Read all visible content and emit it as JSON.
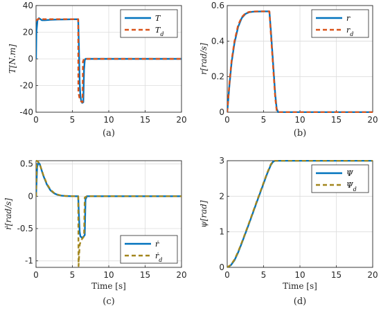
{
  "colors": {
    "blue": "#0072BD",
    "orange": "#D95319",
    "olive": "#A2861D",
    "grid": "#dcdcdc",
    "axis": "#262626"
  },
  "chart_data": [
    {
      "id": "a",
      "type": "line",
      "caption": "(a)",
      "xlabel": "",
      "ylabel": "T[N.m]",
      "xlim": [
        0,
        20
      ],
      "ylim": [
        -40,
        40
      ],
      "xticks": [
        0,
        5,
        10,
        15,
        20
      ],
      "yticks": [
        -40,
        -20,
        0,
        20,
        40
      ],
      "grid": true,
      "legend_position": "top-right",
      "series": [
        {
          "name": "T",
          "color": "#0072BD",
          "style": "solid",
          "x": [
            0,
            0.05,
            0.2,
            0.4,
            0.8,
            1.2,
            2,
            3,
            4,
            5,
            5.8,
            5.9,
            6.0,
            6.1,
            6.2,
            6.35,
            6.5,
            6.6,
            6.7,
            6.8,
            7,
            8,
            10,
            15,
            20
          ],
          "y": [
            0,
            20,
            29,
            30.5,
            29,
            29,
            29.3,
            29.5,
            29.6,
            29.7,
            29.7,
            8,
            -18,
            -28,
            -31,
            -33,
            -32.5,
            -8,
            -1,
            0,
            0,
            0,
            0,
            0,
            0
          ]
        },
        {
          "name": "T_d",
          "color": "#D95319",
          "style": "dashed",
          "x": [
            0,
            0.1,
            0.3,
            0.6,
            1,
            2,
            3,
            4,
            5,
            5.8,
            5.82,
            6,
            6.2,
            6.4,
            6.45,
            6.6,
            7,
            10,
            15,
            20
          ],
          "y": [
            29,
            29,
            30,
            30,
            29.8,
            29.8,
            29.8,
            29.8,
            29.8,
            29.8,
            -25,
            -30,
            -32,
            -32.5,
            -2,
            0,
            0,
            0,
            0,
            0
          ]
        }
      ]
    },
    {
      "id": "b",
      "type": "line",
      "caption": "(b)",
      "xlabel": "",
      "ylabel": "r[rad/s]",
      "xlim": [
        0,
        20
      ],
      "ylim": [
        0,
        0.6
      ],
      "xticks": [
        0,
        5,
        10,
        15,
        20
      ],
      "yticks": [
        0,
        0.2,
        0.4,
        0.6
      ],
      "grid": true,
      "legend_position": "top-right",
      "series": [
        {
          "name": "r",
          "color": "#0072BD",
          "style": "solid",
          "x": [
            0,
            0.3,
            0.6,
            1,
            1.5,
            2,
            2.5,
            3,
            3.5,
            4,
            5,
            5.8,
            6.0,
            6.2,
            6.4,
            6.6,
            6.8,
            7,
            10,
            15,
            20
          ],
          "y": [
            0,
            0.15,
            0.28,
            0.39,
            0.48,
            0.53,
            0.553,
            0.562,
            0.565,
            0.566,
            0.567,
            0.567,
            0.46,
            0.34,
            0.22,
            0.1,
            0.02,
            0,
            0,
            0,
            0
          ]
        },
        {
          "name": "r_d",
          "color": "#D95319",
          "style": "dashed",
          "x": [
            0,
            0.3,
            0.6,
            1,
            1.5,
            2,
            2.5,
            3,
            3.5,
            4,
            5,
            5.8,
            6.0,
            6.2,
            6.4,
            6.6,
            6.8,
            7,
            10,
            15,
            20
          ],
          "y": [
            0,
            0.16,
            0.29,
            0.4,
            0.49,
            0.535,
            0.556,
            0.564,
            0.566,
            0.567,
            0.567,
            0.567,
            0.44,
            0.32,
            0.2,
            0.08,
            0.01,
            0,
            0,
            0,
            0
          ]
        }
      ]
    },
    {
      "id": "c",
      "type": "line",
      "caption": "(c)",
      "xlabel": "Time [s]",
      "ylabel": "ṙ[rad/s]",
      "xlim": [
        0,
        20
      ],
      "ylim": [
        -1.1,
        0.55
      ],
      "xticks": [
        0,
        5,
        10,
        15,
        20
      ],
      "yticks": [
        -1,
        -0.5,
        0,
        0.5
      ],
      "grid": true,
      "legend_position": "bottom-right",
      "series": [
        {
          "name": "ṙ",
          "color": "#0072BD",
          "style": "solid",
          "x": [
            0,
            0.15,
            0.3,
            0.5,
            1,
            1.5,
            2,
            2.5,
            3,
            3.5,
            4,
            5,
            5.8,
            5.9,
            6.0,
            6.1,
            6.3,
            6.5,
            6.7,
            6.8,
            7,
            10,
            15,
            20
          ],
          "y": [
            0,
            0.45,
            0.52,
            0.5,
            0.32,
            0.18,
            0.09,
            0.045,
            0.02,
            0.01,
            0.004,
            0,
            0,
            -0.3,
            -0.55,
            -0.62,
            -0.64,
            -0.63,
            -0.6,
            -0.05,
            0,
            0,
            0,
            0
          ]
        },
        {
          "name": "ṙ_d",
          "color": "#A2861D",
          "style": "dashed",
          "x": [
            0,
            0.1,
            0.3,
            0.5,
            1,
            1.5,
            2,
            2.5,
            3,
            3.5,
            4,
            5,
            5.8,
            5.85,
            6.0,
            6.2,
            6.4,
            6.6,
            6.7,
            7,
            10,
            15,
            20
          ],
          "y": [
            0,
            0.55,
            0.53,
            0.5,
            0.33,
            0.19,
            0.1,
            0.05,
            0.025,
            0.01,
            0.005,
            0,
            0,
            -1.08,
            -0.75,
            -0.68,
            -0.65,
            -0.62,
            -0.02,
            0,
            0,
            0,
            0
          ]
        }
      ]
    },
    {
      "id": "d",
      "type": "line",
      "caption": "(d)",
      "xlabel": "Time [s]",
      "ylabel": "ψ[rad]",
      "xlim": [
        0,
        20
      ],
      "ylim": [
        0,
        3
      ],
      "xticks": [
        0,
        5,
        10,
        15,
        20
      ],
      "yticks": [
        0,
        1,
        2,
        3
      ],
      "grid": true,
      "legend_position": "top-right",
      "series": [
        {
          "name": "Ψ",
          "color": "#0072BD",
          "style": "solid",
          "x": [
            0,
            0.5,
            1,
            1.5,
            2,
            3,
            4,
            5,
            5.5,
            6,
            6.3,
            6.6,
            7,
            10,
            15,
            20
          ],
          "y": [
            0,
            0.06,
            0.2,
            0.42,
            0.68,
            1.23,
            1.8,
            2.36,
            2.64,
            2.88,
            2.97,
            3.0,
            3.0,
            3.0,
            3.0,
            3.0
          ]
        },
        {
          "name": "Ψ_d",
          "color": "#A2861D",
          "style": "dashed",
          "x": [
            0,
            0.5,
            1,
            1.5,
            2,
            3,
            4,
            5,
            5.5,
            6,
            6.3,
            6.6,
            7,
            10,
            15,
            20
          ],
          "y": [
            0,
            0.07,
            0.22,
            0.44,
            0.7,
            1.25,
            1.82,
            2.38,
            2.66,
            2.9,
            2.98,
            3.0,
            3.0,
            3.0,
            3.0,
            3.0
          ]
        }
      ]
    }
  ]
}
